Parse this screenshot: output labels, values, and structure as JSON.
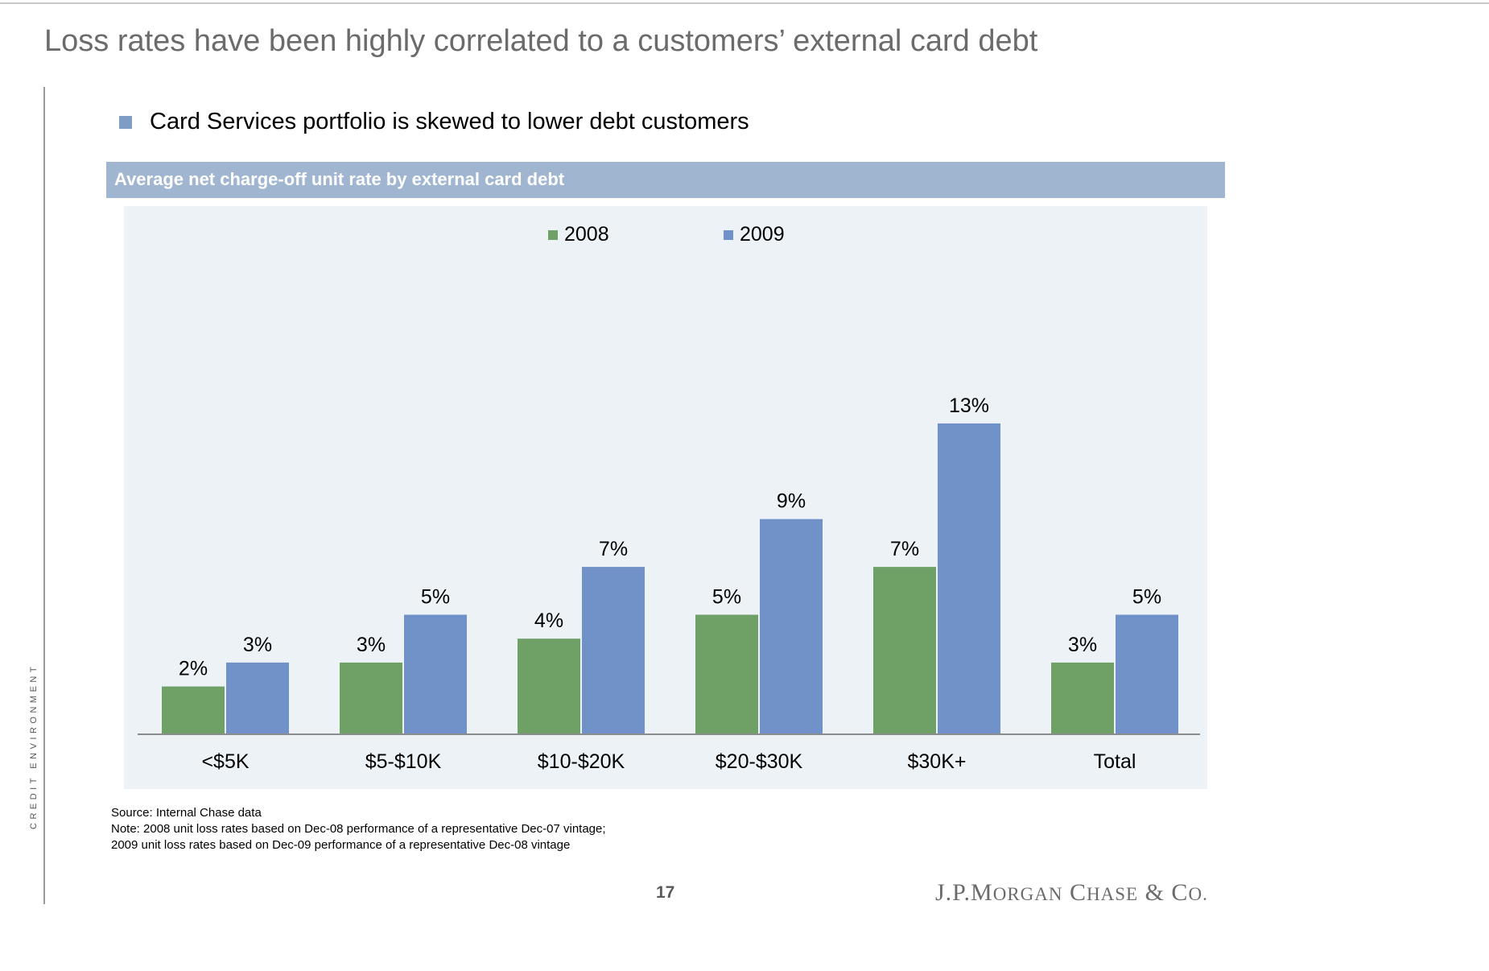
{
  "page": {
    "title": "Loss rates have been highly correlated to a customers’ external card debt",
    "side_label": "CREDIT ENVIRONMENT",
    "bullet": "Card Services portfolio is skewed to lower debt customers",
    "page_number": "17",
    "logo": {
      "part1": "J.P.",
      "part2": "M",
      "part3": "ORGAN",
      "part4": "C",
      "part5": "HASE",
      "part6": "& C",
      "part7": "O."
    }
  },
  "footnotes": {
    "source": "Source: Internal Chase data",
    "note1": "Note: 2008 unit loss rates based on Dec-08 performance of a representative Dec-07 vintage;",
    "note2": "2009 unit loss rates based on Dec-09 performance of a representative Dec-08 vintage"
  },
  "chart_data": {
    "type": "bar",
    "title": "Average net charge-off unit rate by external card debt",
    "categories": [
      "<$5K",
      "$5-$10K",
      "$10-$20K",
      "$20-$30K",
      "$30K+",
      "Total"
    ],
    "series": [
      {
        "name": "2008",
        "color": "#6fa167",
        "values": [
          2,
          3,
          4,
          5,
          7,
          3
        ],
        "labels": [
          "2%",
          "3%",
          "4%",
          "5%",
          "7%",
          "3%"
        ]
      },
      {
        "name": "2009",
        "color": "#7192c8",
        "values": [
          3,
          5,
          7,
          9,
          13,
          5
        ],
        "labels": [
          "3%",
          "5%",
          "7%",
          "9%",
          "13%",
          "5%"
        ]
      }
    ],
    "ylim": [
      0,
      16
    ],
    "grid": false,
    "legend": "top-center",
    "xlabel": "",
    "ylabel": ""
  }
}
